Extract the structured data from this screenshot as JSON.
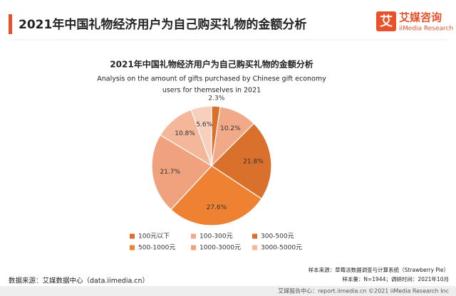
{
  "header": {
    "title": "2021年中国礼物经济用户为自己购买礼物的金额分析"
  },
  "logo": {
    "icon": "艾",
    "name": "艾媒咨询",
    "name_en": "iiMedia Research"
  },
  "chart_data": {
    "type": "pie",
    "title": "2021年中国礼物经济用户为自己购买礼物的金额分析",
    "subtitle": [
      "Analysis on the amount of gifts purchased by Chinese gift economy",
      "users for themselves in 2021"
    ],
    "categories": [
      "100元以下",
      "100-300元",
      "300-500元",
      "500-1000元",
      "1000-3000元",
      "3000-5000元",
      null
    ],
    "values": [
      2.3,
      10.2,
      21.8,
      27.6,
      21.7,
      10.8,
      5.6
    ],
    "value_labels": [
      "2.3%",
      "10.2%",
      "21.8%",
      "27.6%",
      "21.7%",
      "10.8%",
      "5.6%"
    ],
    "colors": [
      "#d9702b",
      "#f2a987",
      "#d9702b",
      "#ef8132",
      "#f0a27f",
      "#f4b79a",
      "#f8cfbd"
    ]
  },
  "footer": {
    "source": "数据来源：艾媒数据中心（data.iimedia.cn）",
    "sample_source": "样本来源：草莓派数据调查与计算系统（Strawberry Pie）",
    "sample_size": "样本量：N=1944；调研时间：2021年10月",
    "copyright": "艾媒报告中心：report.iimedia.cn  ©2021  iiMedia Research  Inc"
  }
}
